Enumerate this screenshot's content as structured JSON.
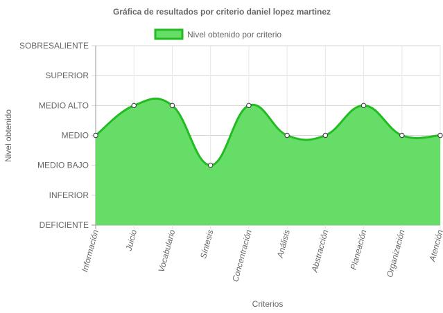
{
  "chart_data": {
    "type": "area",
    "title": "Gráfica de resultados por criterio daniel lopez martinez",
    "xlabel": "Criterios",
    "ylabel": "Nivel obtenido",
    "levels": [
      "DEFICIENTE",
      "INFERIOR",
      "MEDIO BAJO",
      "MEDIO",
      "MEDIO ALTO",
      "SUPERIOR",
      "SOBRESALIENTE"
    ],
    "categories": [
      "Información",
      "Juicio",
      "Vocabulario",
      "Síntesis",
      "Concentración",
      "Análisis",
      "Abstracción",
      "Planeación",
      "Organización",
      "Atención"
    ],
    "series": [
      {
        "name": "Nivel obtenido por criterio",
        "values": [
          3,
          4,
          4,
          2,
          4,
          3,
          3,
          4,
          3,
          3
        ],
        "fill_color": "#66dd66",
        "line_color": "#22bb22"
      }
    ],
    "ylim": [
      0,
      6
    ],
    "grid": true,
    "legend_position": "top"
  }
}
